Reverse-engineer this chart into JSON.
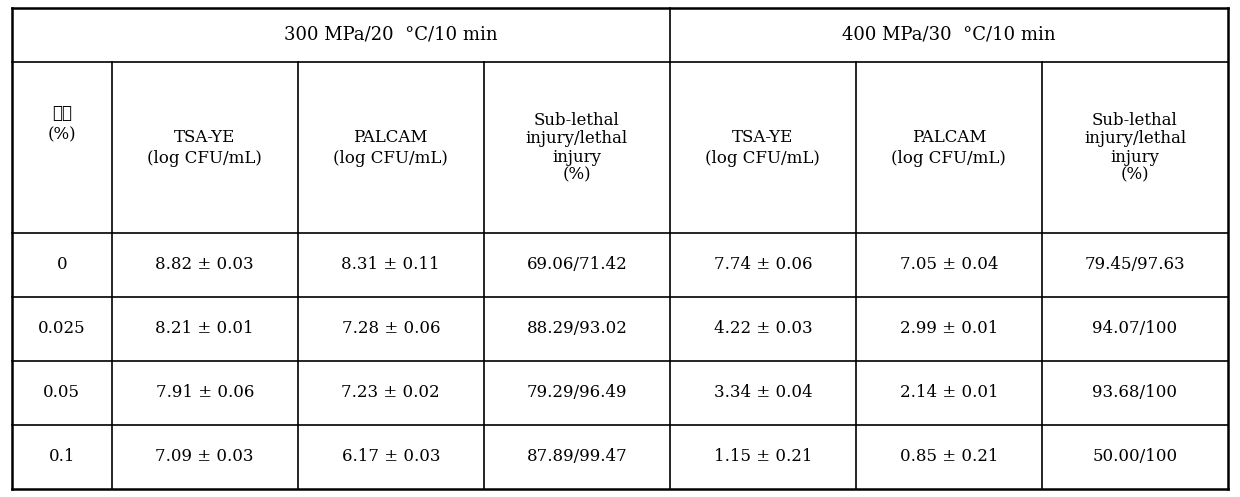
{
  "group1_label": "300 MPa/20  °C/10 min",
  "group2_label": "400 MPa/30  °C/10 min",
  "col0_line1": "浓度",
  "col0_line2": "(%)",
  "header_cols": [
    [
      "TSA-YE",
      "(log CFU/mL)"
    ],
    [
      "PALCAM",
      "(log CFU/mL)"
    ],
    [
      "Sub-lethal",
      "injury/lethal",
      "injury",
      "(%)"
    ],
    [
      "TSA-YE",
      "(log CFU/mL)"
    ],
    [
      "PALCAM",
      "(log CFU/mL)"
    ],
    [
      "Sub-lethal",
      "injury/lethal",
      "injury",
      "(%)"
    ]
  ],
  "rows": [
    [
      "0",
      "8.82 ± 0.03",
      "8.31 ± 0.11",
      "69.06/71.42",
      "7.74 ± 0.06",
      "7.05 ± 0.04",
      "79.45/97.63"
    ],
    [
      "0.025",
      "8.21 ± 0.01",
      "7.28 ± 0.06",
      "88.29/93.02",
      "4.22 ± 0.03",
      "2.99 ± 0.01",
      "94.07/100"
    ],
    [
      "0.05",
      "7.91 ± 0.06",
      "7.23 ± 0.02",
      "79.29/96.49",
      "3.34 ± 0.04",
      "2.14 ± 0.01",
      "93.68/100"
    ],
    [
      "0.1",
      "7.09 ± 0.03",
      "6.17 ± 0.03",
      "87.89/99.47",
      "1.15 ± 0.21",
      "0.85 ± 0.21",
      "50.00/100"
    ]
  ],
  "header1_fontsize": 13,
  "header2_fontsize": 12,
  "cell_fontsize": 12,
  "text_color": "#000000",
  "line_color": "#000000",
  "bg_color": "#ffffff",
  "col_props": [
    0.082,
    0.153,
    0.153,
    0.153,
    0.153,
    0.153,
    0.153
  ]
}
